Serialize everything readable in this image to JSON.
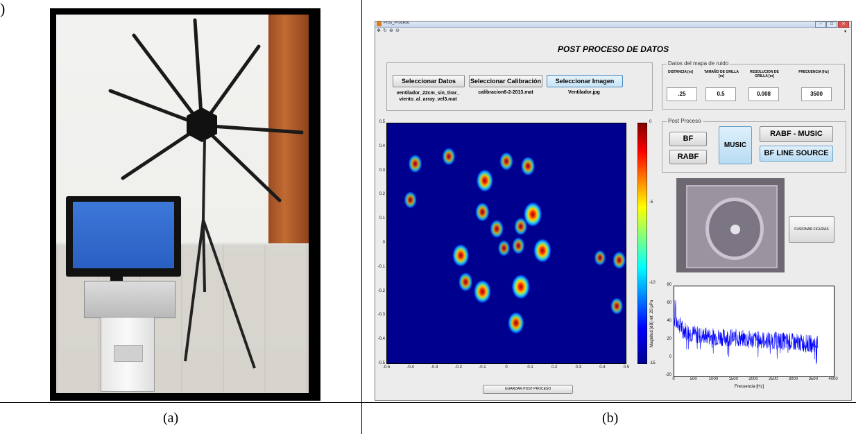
{
  "figure": {
    "top_label": ")",
    "caption_a": "(a)",
    "caption_b": "(b)"
  },
  "window": {
    "title": "Post_Proceso",
    "controls": {
      "minimize": "–",
      "maximize": "□",
      "close": "✕"
    },
    "toolbar": [
      "pan-icon",
      "rotate-icon",
      "zoom-in-icon",
      "zoom-out-icon"
    ],
    "toolbar_arrow": "▾"
  },
  "app": {
    "title": "POST PROCESO DE DATOS",
    "buttons": {
      "datos": "Seleccionar Datos",
      "calibracion": "Seleccionar Calibración",
      "imagen": "Seleccionar Imagen",
      "fusionar": "FUSIONAR FIGURAS",
      "guardar": "GUARDAR POST PROCESO"
    },
    "files": {
      "datos": "ventilador_22cm_sin_tirar_ viento_al_array_vel3.mat",
      "calibracion": "calibracion6-2-2013.mat",
      "imagen": "Ventilador.jpg"
    },
    "mapa": {
      "legend": "Datos del mapa de ruido",
      "labels": {
        "distancia": "DISTANCIA [m]",
        "tamano": "TAMAÑO DE GRILLA [m]",
        "resolucion": "RESOLUCION DE GRILLA [m]",
        "frecuencia": "FRECUENCIA [Hz]"
      },
      "values": {
        "distancia": ".25",
        "tamano": "0.5",
        "resolucion": "0.008",
        "frecuencia": "3500"
      }
    },
    "post": {
      "legend": "Post Proceso",
      "bf": "BF",
      "rabf": "RABF",
      "music": "MUSIC",
      "rabf_music": "RABF - MUSIC",
      "bf_line": "BF LINE SOURCE"
    }
  },
  "colors": {
    "window_bg": "#ececec",
    "highlight_button": "#c7e4f7",
    "spectrum_line": "#0000ff"
  },
  "chart_data": [
    {
      "type": "heatmap",
      "x_ticks": [
        "-0.5",
        "-0.4",
        "-0.3",
        "-0.2",
        "-0.1",
        "0",
        "0.1",
        "0.2",
        "0.3",
        "0.4",
        "0.5"
      ],
      "y_ticks": [
        "0.5",
        "0.4",
        "0.3",
        "0.2",
        "0.1",
        "0",
        "-0.1",
        "-0.2",
        "-0.3",
        "-0.4",
        "-0.5"
      ],
      "xlim": [
        -0.5,
        0.5
      ],
      "ylim": [
        -0.5,
        0.5
      ],
      "colorbar_ticks": [
        "0",
        "-5",
        "-10",
        "-15"
      ],
      "colorbar_range": [
        -15,
        0
      ],
      "hotspots": [
        {
          "x": -0.09,
          "y": 0.26,
          "level": 0.85
        },
        {
          "x": 0.0,
          "y": 0.34,
          "level": 0.55
        },
        {
          "x": 0.09,
          "y": 0.32,
          "level": 0.6
        },
        {
          "x": -0.1,
          "y": 0.13,
          "level": 0.6
        },
        {
          "x": 0.11,
          "y": 0.12,
          "level": 1.0
        },
        {
          "x": -0.04,
          "y": 0.06,
          "level": 0.55
        },
        {
          "x": 0.06,
          "y": 0.07,
          "level": 0.5
        },
        {
          "x": -0.19,
          "y": -0.05,
          "level": 0.85
        },
        {
          "x": -0.01,
          "y": -0.02,
          "level": 0.4
        },
        {
          "x": 0.05,
          "y": -0.01,
          "level": 0.45
        },
        {
          "x": 0.15,
          "y": -0.03,
          "level": 0.95
        },
        {
          "x": -0.17,
          "y": -0.16,
          "level": 0.6
        },
        {
          "x": -0.1,
          "y": -0.2,
          "level": 0.9
        },
        {
          "x": 0.06,
          "y": -0.18,
          "level": 1.0
        },
        {
          "x": 0.04,
          "y": -0.33,
          "level": 0.8
        },
        {
          "x": -0.38,
          "y": 0.33,
          "level": 0.55
        },
        {
          "x": -0.4,
          "y": 0.18,
          "level": 0.45
        },
        {
          "x": -0.24,
          "y": 0.36,
          "level": 0.5
        },
        {
          "x": 0.47,
          "y": -0.07,
          "level": 0.5
        },
        {
          "x": 0.39,
          "y": -0.06,
          "level": 0.35
        },
        {
          "x": 0.46,
          "y": -0.26,
          "level": 0.45
        }
      ]
    },
    {
      "type": "line",
      "xlabel": "Frecuencia [Hz]",
      "ylabel": "Magnitud [dB] ref. 20 μPa",
      "xlim": [
        0,
        4000
      ],
      "ylim": [
        -20,
        80
      ],
      "x_ticks": [
        "0",
        "500",
        "1000",
        "1500",
        "2000",
        "2500",
        "3000",
        "3500",
        "4000"
      ],
      "y_ticks": [
        "80",
        "60",
        "40",
        "20",
        "0",
        "-20"
      ],
      "series": [
        {
          "color": "#0000ff",
          "x": [
            0,
            100,
            200,
            400,
            600,
            800,
            1000,
            1500,
            2000,
            2500,
            3000,
            3500,
            3600
          ],
          "y": [
            45,
            40,
            33,
            28,
            26,
            25,
            24,
            23,
            21,
            20,
            18,
            16,
            15
          ],
          "noise_amplitude": 10
        }
      ]
    }
  ]
}
